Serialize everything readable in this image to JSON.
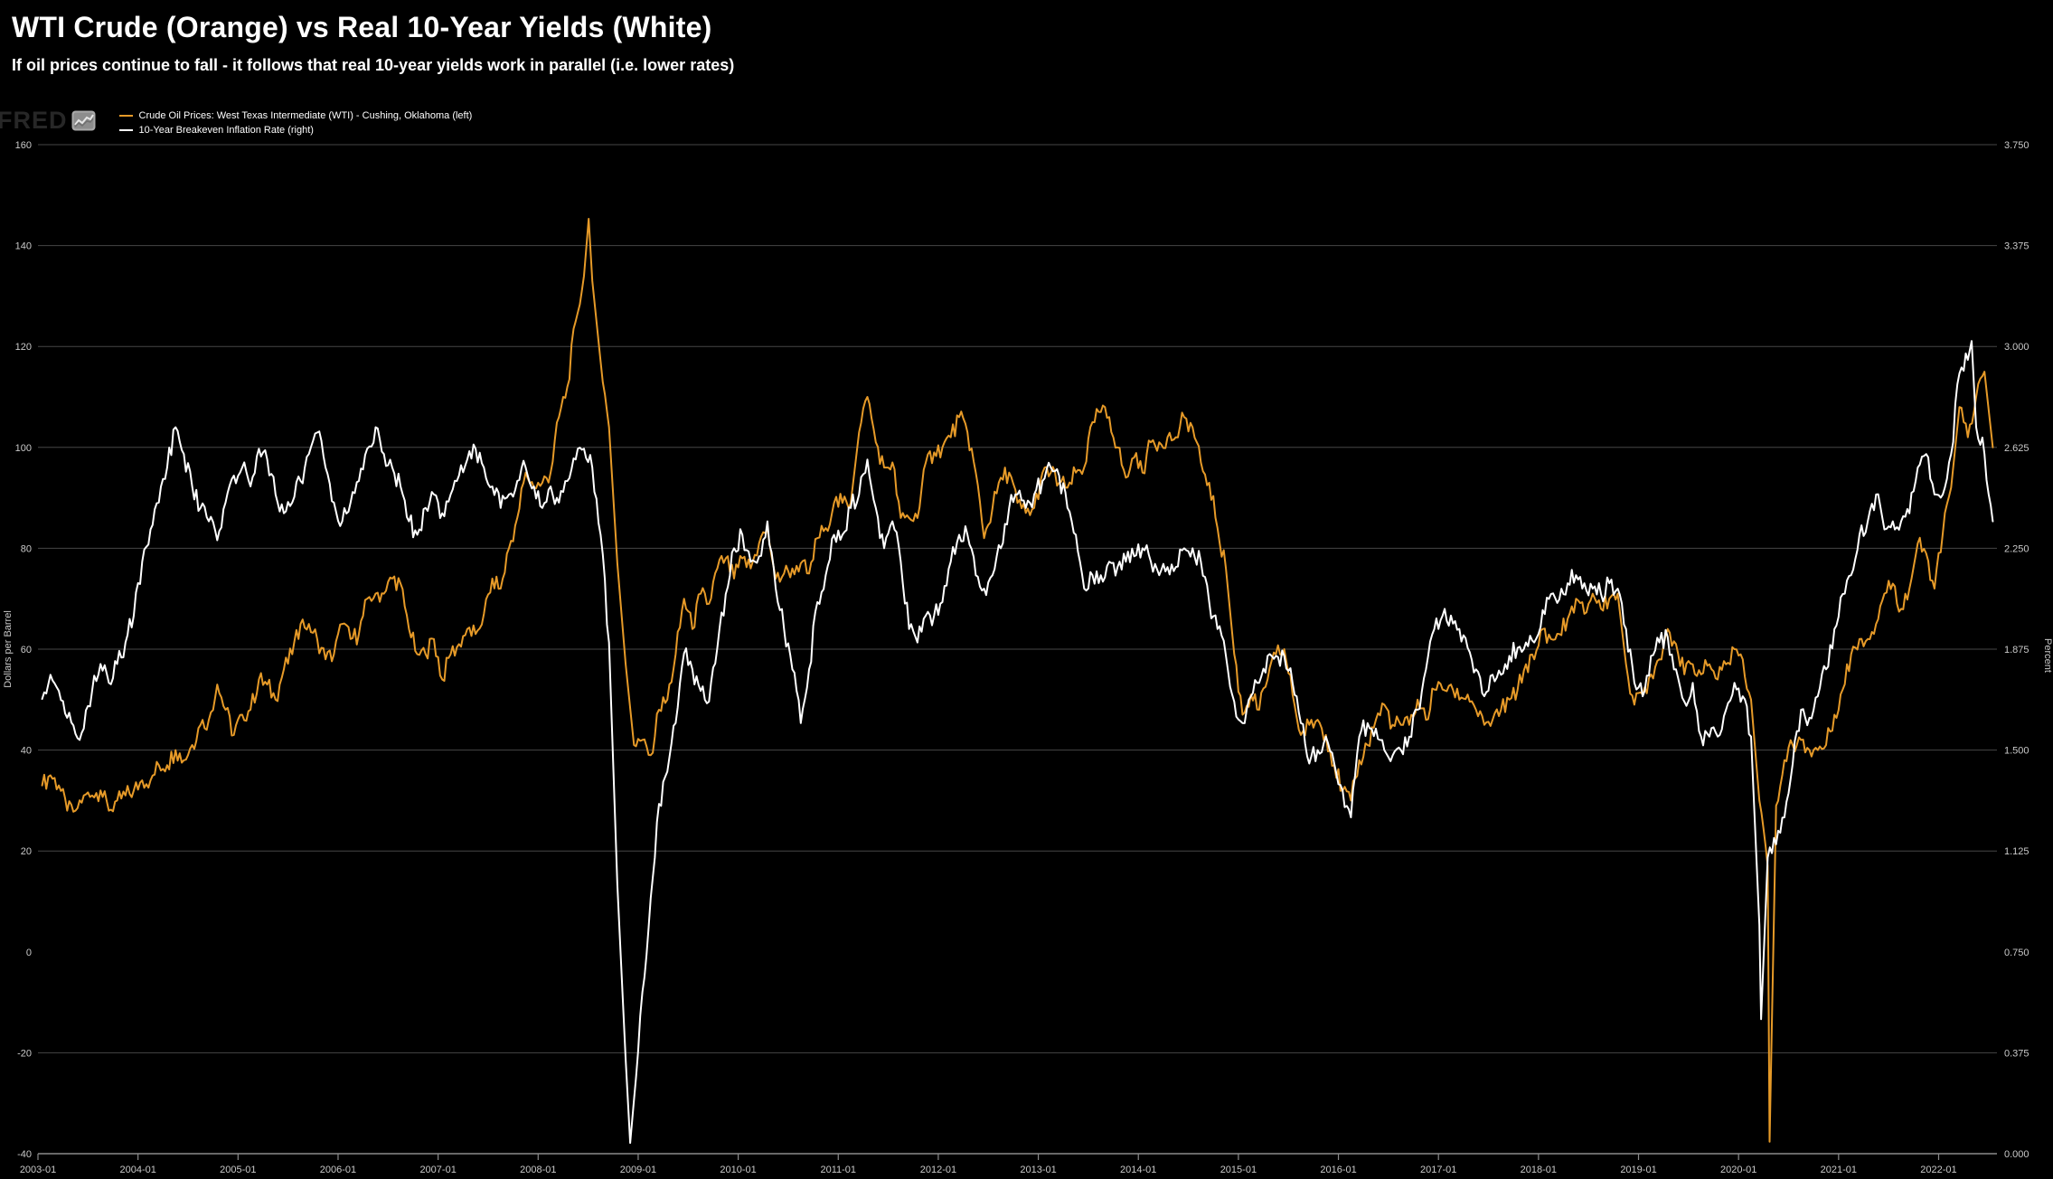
{
  "header": {
    "title": "WTI Crude (Orange) vs Real 10-Year Yields (White)",
    "subtitle": "If oil prices continue to fall - it follows that real 10-year yields work in parallel (i.e. lower rates)"
  },
  "branding": {
    "logo_text": "FRED"
  },
  "legend": [
    {
      "label": "Crude Oil Prices: West Texas Intermediate (WTI) - Cushing, Oklahoma (left)",
      "color": "#E69A28"
    },
    {
      "label": "10-Year Breakeven Inflation Rate (right)",
      "color": "#FFFFFF"
    }
  ],
  "colors": {
    "background": "#000000",
    "gridline": "#464646",
    "axis_line": "#8a8a8a",
    "tick_text": "#c9c9c9",
    "wti": "#E69A28",
    "breakeven": "#FFFFFF"
  },
  "chart_data": {
    "type": "line",
    "title": "WTI Crude (Orange) vs Real 10-Year Yields (White)",
    "x_axis": {
      "labels": [
        "2003-01",
        "2004-01",
        "2005-01",
        "2006-01",
        "2007-01",
        "2008-01",
        "2009-01",
        "2010-01",
        "2011-01",
        "2012-01",
        "2013-01",
        "2014-01",
        "2015-01",
        "2016-01",
        "2017-01",
        "2018-01",
        "2019-01",
        "2020-01",
        "2021-01",
        "2022-01"
      ],
      "start_year": 2003,
      "end_year_fraction": 2022.583,
      "frequency_shown": "daily (approximated monthly below)"
    },
    "left_axis": {
      "label": "Dollars per Barrel",
      "ticks": [
        160,
        140,
        120,
        100,
        80,
        60,
        40,
        20,
        0,
        -20,
        -40
      ],
      "range": [
        -40,
        160
      ]
    },
    "right_axis": {
      "label": "Percent",
      "ticks": [
        "3.750",
        "3.375",
        "3.000",
        "2.625",
        "2.250",
        "1.875",
        "1.500",
        "1.125",
        "0.750",
        "0.375",
        "0.000"
      ],
      "range": [
        0,
        3.75
      ]
    },
    "grid": {
      "horizontal": true,
      "vertical": false,
      "no_gridline_at_left_value": 0,
      "no_gridline_at_right_value": 0.75
    },
    "legend_position": "top-left",
    "series": [
      {
        "name": "Crude Oil Prices: West Texas Intermediate (WTI) - Cushing, Oklahoma (left)",
        "axis": "left",
        "color": "#E69A28",
        "start": "2003-01",
        "interval": "monthly",
        "values": [
          33,
          35,
          33,
          28,
          28,
          31,
          31,
          32,
          28,
          30,
          31,
          32,
          34,
          34,
          37,
          37,
          40,
          38,
          41,
          45,
          46,
          53,
          48,
          43,
          47,
          48,
          54,
          53,
          50,
          56,
          59,
          65,
          65,
          62,
          58,
          59,
          65,
          62,
          63,
          70,
          71,
          71,
          74,
          73,
          64,
          59,
          59,
          62,
          54,
          59,
          61,
          64,
          63,
          67,
          74,
          72,
          80,
          86,
          95,
          92,
          93,
          95,
          106,
          112,
          125,
          134,
          133,
          117,
          104,
          77,
          57,
          41,
          42,
          39,
          48,
          50,
          59,
          70,
          64,
          71,
          69,
          76,
          78,
          74,
          78,
          76,
          81,
          84,
          74,
          75,
          76,
          77,
          75,
          82,
          84,
          89,
          89,
          89,
          103,
          110,
          101,
          96,
          97,
          86,
          86,
          86,
          97,
          99,
          100,
          102,
          106,
          103,
          95,
          82,
          88,
          94,
          95,
          89,
          87,
          88,
          95,
          95,
          93,
          92,
          95,
          96,
          105,
          107,
          106,
          100,
          94,
          98,
          95,
          101,
          101,
          102,
          102,
          106,
          104,
          97,
          93,
          84,
          76,
          59,
          47,
          51,
          48,
          54,
          59,
          60,
          51,
          43,
          45,
          46,
          43,
          37,
          32,
          30,
          38,
          41,
          46,
          49,
          45,
          45,
          45,
          50,
          46,
          52,
          52,
          53,
          50,
          51,
          48,
          45,
          46,
          48,
          50,
          52,
          57,
          58,
          64,
          62,
          63,
          66,
          70,
          67,
          71,
          68,
          70,
          71,
          57,
          49,
          51,
          55,
          58,
          64,
          61,
          55,
          57,
          55,
          57,
          54,
          57,
          60,
          58,
          50,
          30,
          17,
          29,
          38,
          41,
          42,
          40,
          40,
          41,
          47,
          52,
          59,
          62,
          62,
          65,
          71,
          73,
          68,
          72,
          81,
          79,
          72,
          83,
          92,
          108,
          102,
          110,
          115,
          100
        ],
        "spikes": [
          [
            2008.505,
            145.3
          ],
          [
            2020.31,
            -37.63
          ]
        ]
      },
      {
        "name": "10-Year Breakeven Inflation Rate (right)",
        "axis": "right",
        "color": "#FFFFFF",
        "start": "2003-01",
        "interval": "monthly",
        "values": [
          1.69,
          1.78,
          1.72,
          1.62,
          1.56,
          1.58,
          1.72,
          1.82,
          1.75,
          1.82,
          1.9,
          2.0,
          2.2,
          2.32,
          2.42,
          2.55,
          2.7,
          2.6,
          2.48,
          2.4,
          2.35,
          2.28,
          2.42,
          2.52,
          2.55,
          2.48,
          2.62,
          2.58,
          2.45,
          2.38,
          2.42,
          2.5,
          2.6,
          2.68,
          2.55,
          2.42,
          2.35,
          2.42,
          2.5,
          2.62,
          2.7,
          2.6,
          2.55,
          2.48,
          2.35,
          2.3,
          2.4,
          2.45,
          2.38,
          2.45,
          2.52,
          2.58,
          2.62,
          2.55,
          2.48,
          2.4,
          2.45,
          2.5,
          2.55,
          2.48,
          2.4,
          2.48,
          2.42,
          2.5,
          2.58,
          2.62,
          2.55,
          2.3,
          1.9,
          1.0,
          0.35,
          0.2,
          0.6,
          0.95,
          1.3,
          1.42,
          1.6,
          1.86,
          1.8,
          1.72,
          1.68,
          1.88,
          2.08,
          2.25,
          2.3,
          2.2,
          2.22,
          2.35,
          2.1,
          1.95,
          1.8,
          1.6,
          1.8,
          2.05,
          2.15,
          2.3,
          2.3,
          2.4,
          2.45,
          2.58,
          2.4,
          2.25,
          2.35,
          2.2,
          1.95,
          1.9,
          2.0,
          2.0,
          2.05,
          2.2,
          2.3,
          2.3,
          2.15,
          2.1,
          2.15,
          2.25,
          2.4,
          2.45,
          2.4,
          2.45,
          2.5,
          2.55,
          2.52,
          2.4,
          2.3,
          2.1,
          2.15,
          2.15,
          2.2,
          2.18,
          2.2,
          2.22,
          2.25,
          2.2,
          2.15,
          2.18,
          2.18,
          2.25,
          2.25,
          2.2,
          2.05,
          1.95,
          1.85,
          1.68,
          1.6,
          1.7,
          1.75,
          1.85,
          1.85,
          1.85,
          1.75,
          1.6,
          1.45,
          1.5,
          1.55,
          1.45,
          1.35,
          1.25,
          1.55,
          1.6,
          1.58,
          1.5,
          1.48,
          1.5,
          1.55,
          1.65,
          1.8,
          1.95,
          2.0,
          2.0,
          1.95,
          1.88,
          1.8,
          1.7,
          1.78,
          1.78,
          1.85,
          1.88,
          1.9,
          1.9,
          2.02,
          2.08,
          2.06,
          2.12,
          2.15,
          2.12,
          2.1,
          2.08,
          2.12,
          2.1,
          1.95,
          1.75,
          1.7,
          1.85,
          1.9,
          1.92,
          1.8,
          1.68,
          1.75,
          1.55,
          1.55,
          1.55,
          1.65,
          1.75,
          1.7,
          1.55,
          0.85,
          1.1,
          1.15,
          1.25,
          1.45,
          1.65,
          1.62,
          1.7,
          1.8,
          1.95,
          2.08,
          2.15,
          2.3,
          2.35,
          2.45,
          2.32,
          2.35,
          2.35,
          2.38,
          2.55,
          2.6,
          2.45,
          2.45,
          2.6,
          2.9,
          2.95,
          2.7,
          2.6,
          2.35
        ],
        "spikes": [
          [
            2008.92,
            0.04
          ],
          [
            2020.225,
            0.5
          ],
          [
            2022.33,
            3.02
          ]
        ]
      }
    ]
  }
}
